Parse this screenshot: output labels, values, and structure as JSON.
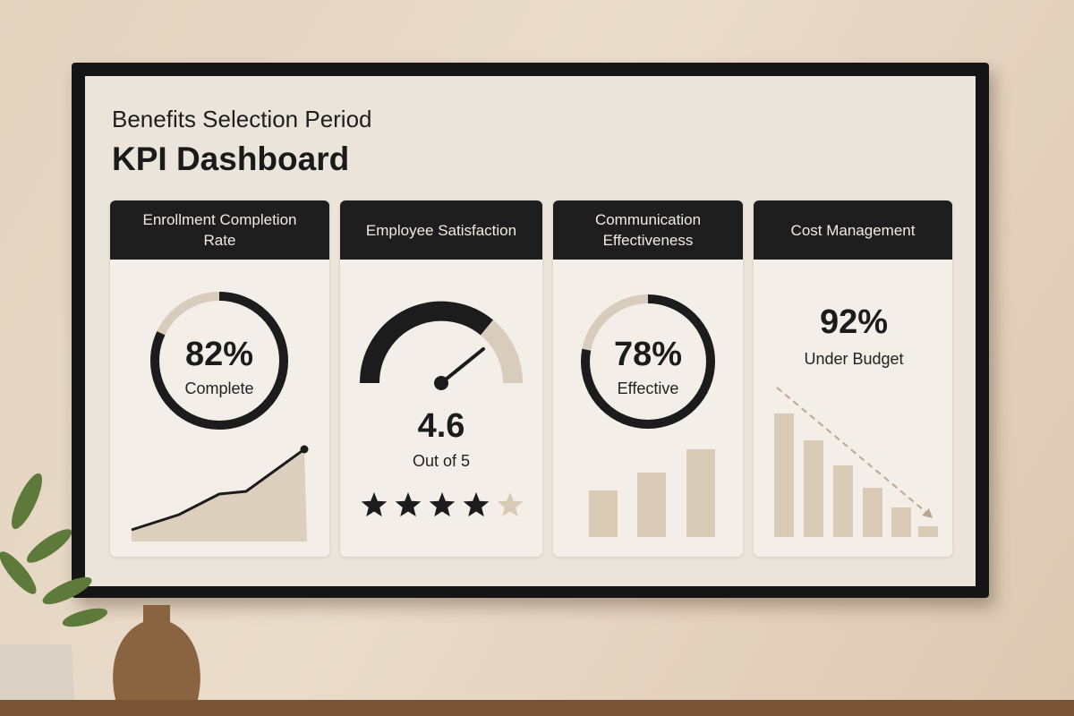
{
  "header": {
    "title": "Benefits Selection Period",
    "subtitle": "KPI Dashboard"
  },
  "cards": [
    {
      "title": "Enrollment Completion Rate",
      "value": {
        "value": 82,
        "label": "82%"
      },
      "caption": "Complete"
    },
    {
      "title": "Employee Satisfaction",
      "value": 4.6,
      "caption": "Out of 5"
    },
    {
      "title": "Communication Effectiveness",
      "value": {
        "value": 78,
        "label": "78%"
      },
      "caption": "Effective"
    },
    {
      "title": "Cost Management",
      "value": {
        "value": 92,
        "label": "92%"
      },
      "caption": "Under Budget"
    }
  ]
}
